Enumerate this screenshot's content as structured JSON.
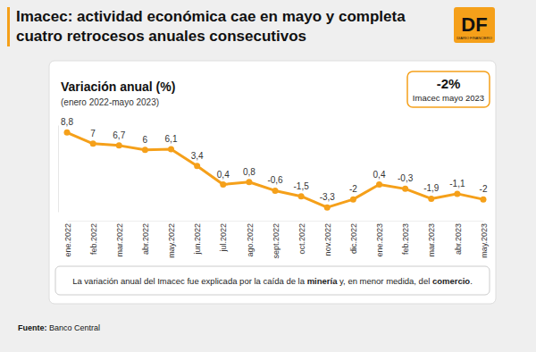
{
  "chart_data": {
    "type": "line",
    "title": "Imacec: actividad económica cae en mayo y completa cuatro retrocesos anuales consecutivos",
    "subtitle": "Variación anual (%)",
    "period": "(enero 2022-mayo 2023)",
    "highlight": {
      "value_label": "-2%",
      "label": "Imacec mayo 2023"
    },
    "logo": {
      "text": "DF",
      "subtext": "DIARIO FINANCIERO"
    },
    "categories": [
      "ene.2022",
      "feb.2022",
      "mar.2022",
      "abr.2022",
      "may.2022",
      "jun.2022",
      "jul.2022",
      "ago.2022",
      "sept.2022",
      "oct.2022",
      "nov.2022",
      "dic.2022",
      "ene.2023",
      "feb.2023",
      "mar.2023",
      "abr.2023",
      "may.2023"
    ],
    "values": [
      8.8,
      7,
      6.7,
      6,
      6.1,
      3.4,
      0.4,
      0.8,
      -0.6,
      -1.5,
      -3.3,
      -2,
      0.4,
      -0.3,
      -1.9,
      -1.1,
      -2
    ],
    "value_labels": [
      "8,8",
      "7",
      "6,7",
      "6",
      "6,1",
      "3,4",
      "0,4",
      "0,8",
      "-0,6",
      "-1,5",
      "-3,3",
      "-2",
      "0,4",
      "-0,3",
      "-1,9",
      "-1,1",
      "-2"
    ],
    "color": "#f5a01a",
    "marker": "circle",
    "data_labels": true,
    "grid": false,
    "tick_labels": "x",
    "ylim": [
      -4,
      10
    ],
    "note_parts": [
      "La variación anual del Imacec fue explicada por la caída de la ",
      "minería",
      " y, en menor medida, del ",
      "comercio",
      "."
    ],
    "source_parts": [
      "Fuente:",
      " Banco Central"
    ]
  }
}
